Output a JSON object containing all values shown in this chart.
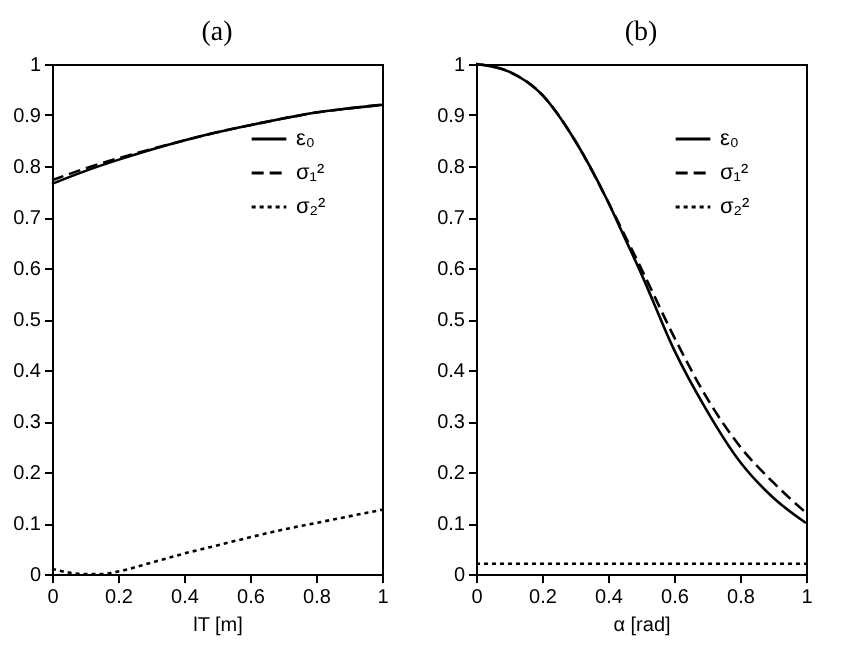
{
  "chart_data": [
    {
      "type": "line",
      "title": "(a)",
      "xlabel": "lT [m]",
      "xlim": [
        0,
        1
      ],
      "ylim": [
        0,
        1
      ],
      "xticks": [
        0,
        0.2,
        0.4,
        0.6,
        0.8,
        1
      ],
      "yticks": [
        0,
        0.1,
        0.2,
        0.3,
        0.4,
        0.5,
        0.6,
        0.7,
        0.8,
        0.9,
        1
      ],
      "grid": false,
      "legend": "top right",
      "marker": "none",
      "x": [
        0,
        0.1,
        0.2,
        0.3,
        0.4,
        0.5,
        0.6,
        0.7,
        0.8,
        0.9,
        1
      ],
      "series": [
        {
          "name": "ε₀",
          "color": "#000000",
          "line_style": "solid",
          "values": [
            0.765,
            0.79,
            0.812,
            0.832,
            0.85,
            0.866,
            0.88,
            0.893,
            0.905,
            0.913,
            0.92
          ]
        },
        {
          "name": "σ₁²",
          "color": "#000000",
          "line_style": "dashed",
          "values": [
            0.772,
            0.795,
            0.815,
            0.833,
            0.85,
            0.866,
            0.88,
            0.893,
            0.905,
            0.913,
            0.92
          ]
        },
        {
          "name": "σ₂²",
          "color": "#000000",
          "line_style": "dotted",
          "x": [
            0,
            0.05,
            0.1,
            0.15,
            0.2,
            0.3,
            0.4,
            0.5,
            0.6,
            0.7,
            0.8,
            0.9,
            1
          ],
          "values": [
            0.01,
            0.003,
            0,
            0,
            0.005,
            0.022,
            0.04,
            0.056,
            0.072,
            0.087,
            0.1,
            0.113,
            0.126
          ]
        }
      ]
    },
    {
      "type": "line",
      "title": "(b)",
      "xlabel": "α [rad]",
      "xlim": [
        0,
        1
      ],
      "ylim": [
        0,
        1
      ],
      "xticks": [
        0,
        0.2,
        0.4,
        0.6,
        0.8,
        1
      ],
      "yticks": [
        0,
        0.1,
        0.2,
        0.3,
        0.4,
        0.5,
        0.6,
        0.7,
        0.8,
        0.9,
        1
      ],
      "grid": false,
      "legend": "top right",
      "marker": "none",
      "x": [
        0,
        0.1,
        0.2,
        0.3,
        0.4,
        0.45,
        0.5,
        0.6,
        0.7,
        0.8,
        0.9,
        1
      ],
      "series": [
        {
          "name": "ε₀",
          "color": "#000000",
          "line_style": "solid",
          "values": [
            1,
            0.985,
            0.94,
            0.85,
            0.73,
            0.66,
            0.59,
            0.44,
            0.32,
            0.22,
            0.15,
            0.1
          ]
        },
        {
          "name": "σ₁²",
          "color": "#000000",
          "line_style": "dashed",
          "values": [
            1,
            0.985,
            0.94,
            0.85,
            0.73,
            0.665,
            0.6,
            0.465,
            0.345,
            0.25,
            0.18,
            0.12
          ]
        },
        {
          "name": "σ₂²",
          "color": "#000000",
          "line_style": "dotted",
          "x": [
            0,
            1
          ],
          "values": [
            0.02,
            0.02
          ]
        }
      ]
    }
  ]
}
